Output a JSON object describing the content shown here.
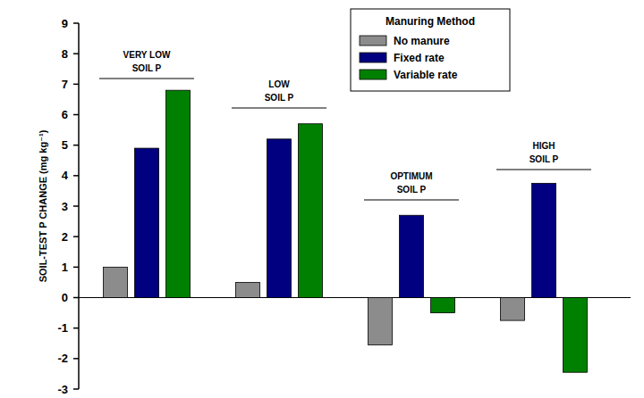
{
  "chart_data": {
    "type": "bar",
    "y_label": "SOIL-TEST P CHANGE (mg kg⁻¹)",
    "categories": [
      "VERY LOW\nSOIL P",
      "LOW\nSOIL P",
      "OPTIMUM\nSOIL P",
      "HIGH\nSOIL P"
    ],
    "legend_title": "Manuring Method",
    "legend": "upper right",
    "series": [
      {
        "name": "No manure",
        "color": "#8c8c8c",
        "values": [
          1.0,
          0.5,
          -1.55,
          -0.75
        ]
      },
      {
        "name": "Fixed rate",
        "color": "#000080",
        "values": [
          4.9,
          5.2,
          2.7,
          3.75
        ]
      },
      {
        "name": "Variable rate",
        "color": "#008000",
        "values": [
          6.8,
          5.7,
          -0.5,
          -2.45
        ]
      }
    ],
    "ylim": [
      -3,
      9
    ],
    "yticks": [
      -3,
      -2,
      -1,
      0,
      1,
      2,
      3,
      4,
      5,
      6,
      7,
      8,
      9
    ],
    "grid": false
  }
}
